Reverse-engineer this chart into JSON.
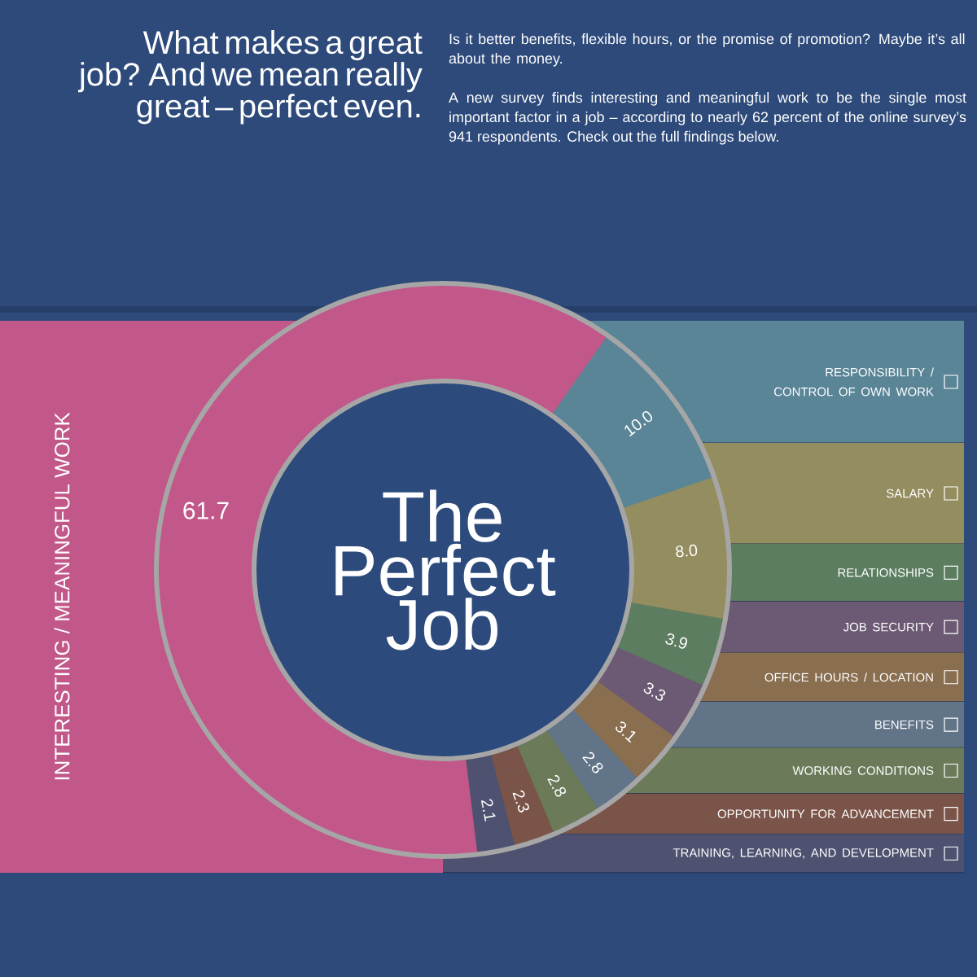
{
  "chart_data": {
    "type": "donut",
    "title": "What makes a great job? And we mean really great – perfect even.",
    "subtitle": "Is it better benefits, flexible hours, or the promise of promotion? Maybe it’s all about the money.",
    "annotations": [
      "A new survey finds interesting and meaningful work to be the single most important factor in a job – according to nearly 62 percent of the online survey’s 941 respondents. Check out the full findings below.",
      "The Perfect Job"
    ],
    "categories": [
      "INTERESTING / MEANINGFUL WORK",
      "RESPONSIBILITY / CONTROL OF OWN WORK",
      "SALARY",
      "RELATIONSHIPS",
      "JOB SECURITY",
      "OFFICE HOURS / LOCATION",
      "BENEFITS",
      "WORKING CONDITIONS",
      "OPPORTUNITY FOR ADVANCEMENT",
      "TRAINING, LEARNING, AND DEVELOPMENT"
    ],
    "values": [
      61.7,
      10.0,
      8.0,
      3.9,
      3.3,
      3.1,
      2.8,
      2.8,
      2.3,
      2.1
    ],
    "value_labels": [
      "61.7",
      "10.0",
      "8.0",
      "3.9",
      "3.3",
      "3.1",
      "2.8",
      "2.8",
      "2.3",
      "2.1"
    ],
    "legend": "right",
    "colors": [
      "#c2578a",
      "#5a8597",
      "#948d5f",
      "#5c7d5f",
      "#6c5a74",
      "#8a6e50",
      "#627488",
      "#6b7a58",
      "#7a5448",
      "#4e5270"
    ]
  }
}
